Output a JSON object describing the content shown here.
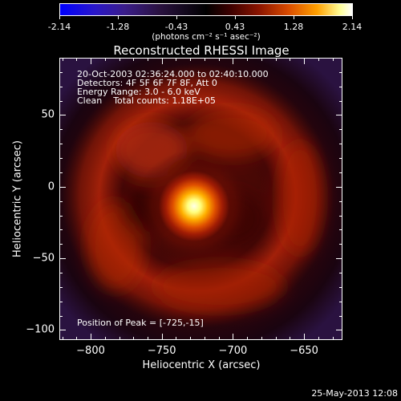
{
  "colorbar": {
    "tick_labels": [
      "-2.14",
      "-1.28",
      "-0.43",
      "0.43",
      "1.28",
      "2.14"
    ],
    "units": "(photons cm⁻² s⁻¹ asec⁻²)",
    "range": [
      -2.14,
      2.14
    ]
  },
  "title": "Reconstructed RHESSI Image",
  "info": {
    "time_range": "20-Oct-2003 02:36:24.000 to 02:40:10.000",
    "detectors": "Detectors: 4F 5F 6F 7F 8F, Att 0",
    "energy": "Energy Range: 3.0 - 6.0 keV",
    "method_counts": "Clean    Total counts: 1.18E+05",
    "peak": "Position of Peak = [-725,-15]"
  },
  "axes": {
    "xlabel": "Heliocentric X (arcsec)",
    "ylabel": "Heliocentric Y (arcsec)",
    "xlim": [
      -822,
      -623
    ],
    "ylim": [
      -107,
      90
    ],
    "x_ticks": [
      -800,
      -750,
      -700,
      -650
    ],
    "x_tick_labels": [
      "−800",
      "−750",
      "−700",
      "−650"
    ],
    "y_ticks": [
      -100,
      -50,
      0,
      50
    ],
    "y_tick_labels": [
      "−100",
      "−50",
      "0",
      "50"
    ]
  },
  "image": {
    "peak_position": [
      -725,
      -15
    ]
  },
  "footer": {
    "datestamp": "25-May-2013 12:08"
  }
}
